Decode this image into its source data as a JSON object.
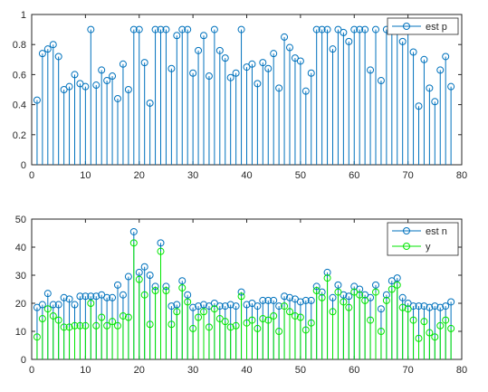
{
  "chart_data": [
    {
      "type": "stem",
      "title": "",
      "xlabel": "",
      "ylabel": "",
      "xlim": [
        0,
        80
      ],
      "ylim": [
        0,
        1
      ],
      "xticks": [
        0,
        10,
        20,
        30,
        40,
        50,
        60,
        70,
        80
      ],
      "yticks": [
        0,
        0.2,
        0.4,
        0.6,
        0.8,
        1
      ],
      "legend_position": "top-right",
      "series": [
        {
          "name": "est p",
          "color": "#0072BD",
          "x": [
            1,
            2,
            3,
            4,
            5,
            6,
            7,
            8,
            9,
            10,
            11,
            12,
            13,
            14,
            15,
            16,
            17,
            18,
            19,
            20,
            21,
            22,
            23,
            24,
            25,
            26,
            27,
            28,
            29,
            30,
            31,
            32,
            33,
            34,
            35,
            36,
            37,
            38,
            39,
            40,
            41,
            42,
            43,
            44,
            45,
            46,
            47,
            48,
            49,
            50,
            51,
            52,
            53,
            54,
            55,
            56,
            57,
            58,
            59,
            60,
            61,
            62,
            63,
            64,
            65,
            66,
            67,
            68,
            69,
            70,
            71,
            72,
            73,
            74,
            75,
            76,
            77,
            78
          ],
          "values": [
            0.43,
            0.74,
            0.77,
            0.8,
            0.72,
            0.5,
            0.52,
            0.6,
            0.54,
            0.52,
            0.9,
            0.53,
            0.63,
            0.56,
            0.59,
            0.44,
            0.67,
            0.5,
            0.9,
            0.9,
            0.68,
            0.41,
            0.9,
            0.9,
            0.9,
            0.64,
            0.86,
            0.9,
            0.9,
            0.61,
            0.76,
            0.86,
            0.59,
            0.9,
            0.76,
            0.71,
            0.58,
            0.61,
            0.9,
            0.65,
            0.67,
            0.54,
            0.68,
            0.64,
            0.74,
            0.51,
            0.85,
            0.78,
            0.71,
            0.69,
            0.49,
            0.61,
            0.9,
            0.9,
            0.9,
            0.77,
            0.9,
            0.88,
            0.82,
            0.9,
            0.9,
            0.9,
            0.63,
            0.9,
            0.56,
            0.9,
            0.9,
            0.9,
            0.82,
            0.9,
            0.75,
            0.39,
            0.7,
            0.51,
            0.42,
            0.63,
            0.72,
            0.52
          ]
        }
      ]
    },
    {
      "type": "stem",
      "title": "",
      "xlabel": "",
      "ylabel": "",
      "xlim": [
        0,
        80
      ],
      "ylim": [
        0,
        50
      ],
      "xticks": [
        0,
        10,
        20,
        30,
        40,
        50,
        60,
        70,
        80
      ],
      "yticks": [
        0,
        10,
        20,
        30,
        40,
        50
      ],
      "legend_position": "top-right",
      "series": [
        {
          "name": "est n",
          "color": "#0072BD",
          "x": [
            1,
            2,
            3,
            4,
            5,
            6,
            7,
            8,
            9,
            10,
            11,
            12,
            13,
            14,
            15,
            16,
            17,
            18,
            19,
            20,
            21,
            22,
            23,
            24,
            25,
            26,
            27,
            28,
            29,
            30,
            31,
            32,
            33,
            34,
            35,
            36,
            37,
            38,
            39,
            40,
            41,
            42,
            43,
            44,
            45,
            46,
            47,
            48,
            49,
            50,
            51,
            52,
            53,
            54,
            55,
            56,
            57,
            58,
            59,
            60,
            61,
            62,
            63,
            64,
            65,
            66,
            67,
            68,
            69,
            70,
            71,
            72,
            73,
            74,
            75,
            76,
            77,
            78
          ],
          "values": [
            18.5,
            19.5,
            23.5,
            19.5,
            19.5,
            22,
            21.5,
            19.5,
            22.5,
            22.5,
            22.5,
            22.5,
            23,
            22,
            22,
            26.5,
            23,
            29.5,
            45.5,
            31,
            33,
            30,
            26,
            41.5,
            26,
            19,
            19.5,
            28,
            23,
            18.5,
            19,
            19.5,
            19,
            20,
            19,
            19,
            19.5,
            19,
            24,
            19.5,
            20,
            19,
            21,
            21,
            21,
            19,
            22.5,
            22,
            21.5,
            20.5,
            21,
            21,
            26,
            24,
            31,
            22,
            26.5,
            23,
            22.5,
            26,
            25,
            23,
            22,
            26.5,
            18,
            23,
            28,
            29,
            22,
            20,
            19,
            19,
            19,
            18.5,
            19,
            18.5,
            19,
            20.5
          ]
        },
        {
          "name": "y",
          "color": "#00E600",
          "x": [
            1,
            2,
            3,
            4,
            5,
            6,
            7,
            8,
            9,
            10,
            11,
            12,
            13,
            14,
            15,
            16,
            17,
            18,
            19,
            20,
            21,
            22,
            23,
            24,
            25,
            26,
            27,
            28,
            29,
            30,
            31,
            32,
            33,
            34,
            35,
            36,
            37,
            38,
            39,
            40,
            41,
            42,
            43,
            44,
            45,
            46,
            47,
            48,
            49,
            50,
            51,
            52,
            53,
            54,
            55,
            56,
            57,
            58,
            59,
            60,
            61,
            62,
            63,
            64,
            65,
            66,
            67,
            68,
            69,
            70,
            71,
            72,
            73,
            74,
            75,
            76,
            77,
            78
          ],
          "values": [
            8,
            14.5,
            18,
            15.5,
            14,
            11.5,
            11.5,
            12,
            12,
            12,
            20,
            12,
            15,
            12,
            13.5,
            12,
            15.5,
            15,
            41.5,
            28.5,
            23,
            12.5,
            24.5,
            38.5,
            24.5,
            12.5,
            17,
            25.5,
            20.5,
            11,
            15,
            17,
            11.5,
            18,
            14.5,
            13.5,
            11.5,
            12,
            22.5,
            13,
            14,
            11,
            14.5,
            14,
            15.5,
            10,
            19,
            17,
            15.5,
            15,
            10.5,
            13,
            24.5,
            22,
            29,
            17,
            24,
            20.5,
            18.5,
            24,
            23,
            21,
            14,
            24,
            10,
            21,
            25,
            26.5,
            18.5,
            18,
            14,
            7.5,
            13.5,
            9.5,
            8,
            12,
            14,
            11
          ]
        }
      ]
    }
  ]
}
